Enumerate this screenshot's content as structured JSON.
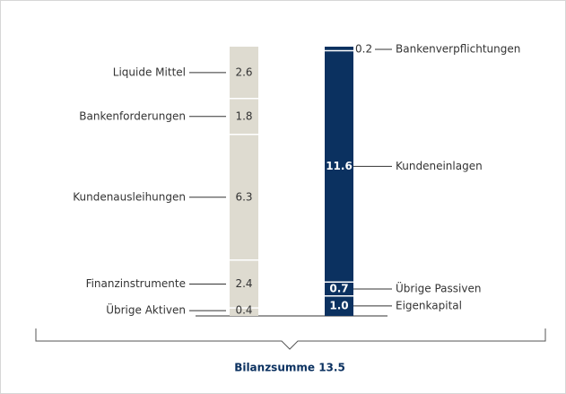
{
  "chart_data": {
    "type": "stacked_column_pair",
    "series": [
      {
        "color": "#dedbd0",
        "categories": [
          "Liquide Mittel",
          "Bankenforderungen",
          "Kundenausleihungen",
          "Finanzinstrumente",
          "Übrige Aktiven"
        ],
        "values": [
          2.6,
          1.8,
          6.3,
          2.4,
          0.4
        ]
      },
      {
        "color": "#0b3160",
        "categories": [
          "Bankenverpflichtungen",
          "Kundeneinlagen",
          "Übrige Passiven",
          "Eigenkapital"
        ],
        "values": [
          0.2,
          11.6,
          0.7,
          1.0
        ],
        "value_labels": [
          "0.2",
          "11.6",
          "0.7",
          "1.0"
        ]
      }
    ],
    "footer": "Bilanzsumme 13.5"
  }
}
